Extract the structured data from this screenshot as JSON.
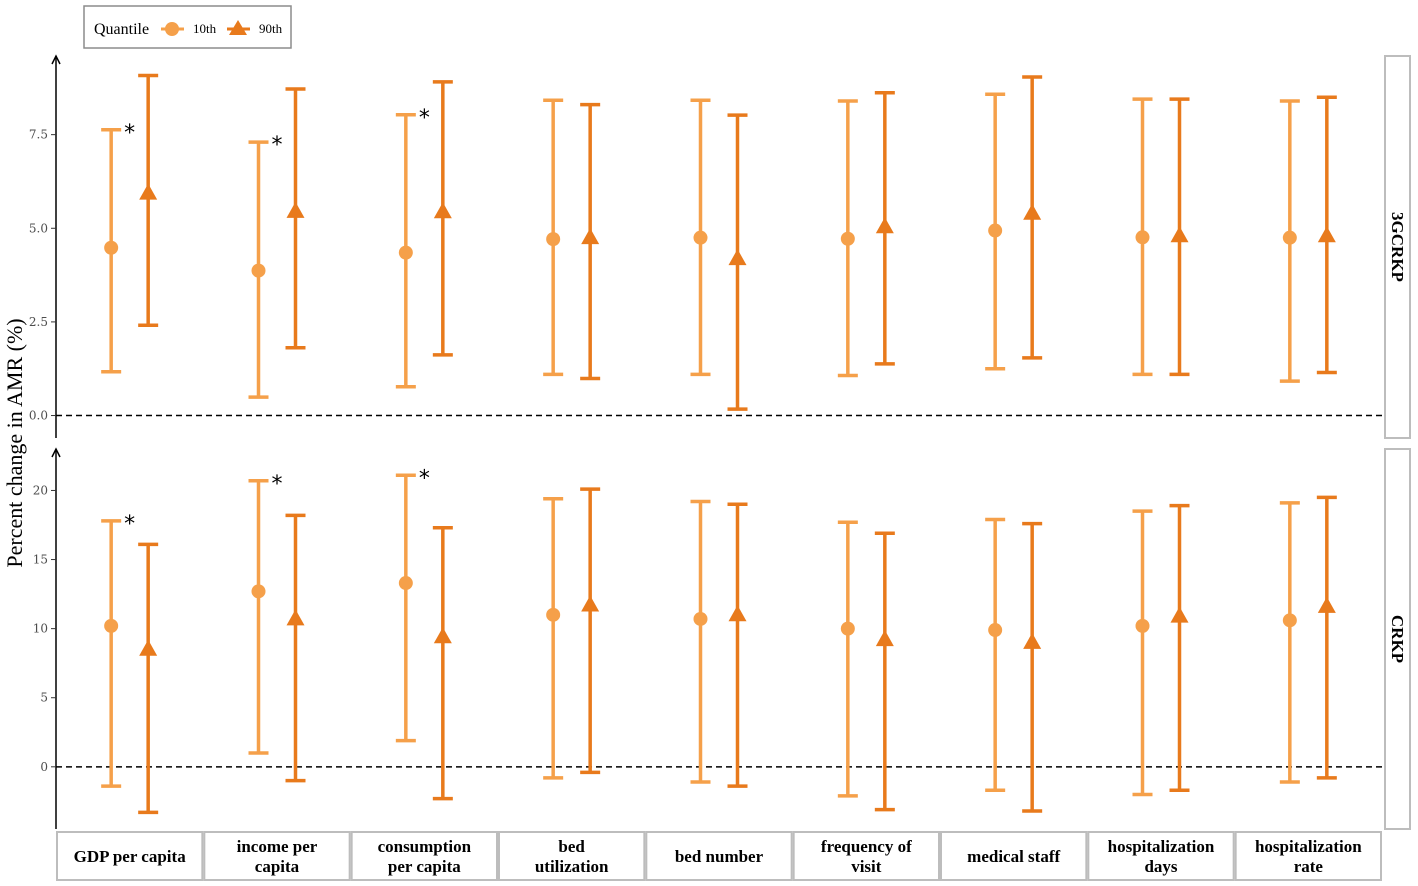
{
  "chart_data": {
    "type": "errorbar",
    "ylabel": "Percent change in AMR (%)",
    "legend": {
      "title": "Quantile",
      "position": "top-left",
      "items": [
        "10th",
        "90th"
      ]
    },
    "colors": {
      "10th": "#F5A04A",
      "90th": "#E87A1C",
      "reference_line": "#000000"
    },
    "categories": [
      {
        "label": "GDP per capita",
        "lines": [
          "GDP per capita"
        ]
      },
      {
        "label": "income per capita",
        "lines": [
          "income per",
          "capita"
        ]
      },
      {
        "label": "consumption per capita",
        "lines": [
          "consumption",
          "per capita"
        ]
      },
      {
        "label": "bed utilization",
        "lines": [
          "bed",
          "utilization"
        ]
      },
      {
        "label": "bed number",
        "lines": [
          "bed number"
        ]
      },
      {
        "label": "frequency of visit",
        "lines": [
          "frequency of",
          "visit"
        ]
      },
      {
        "label": "medical staff",
        "lines": [
          "medical staff"
        ]
      },
      {
        "label": "hospitalization days",
        "lines": [
          "hospitalization",
          "days"
        ]
      },
      {
        "label": "hospitalization rate",
        "lines": [
          "hospitalization",
          "rate"
        ]
      }
    ],
    "panels": [
      {
        "strip": "3GCRKP",
        "ylim": [
          -0.6,
          9.6
        ],
        "yticks": [
          0.0,
          2.5,
          5.0,
          7.5
        ],
        "ytick_labels": [
          "0.0",
          "2.5",
          "5.0",
          "7.5"
        ],
        "significance_marker": "*",
        "series": [
          {
            "name": "10th",
            "estimate": [
              4.48,
              3.87,
              4.35,
              4.71,
              4.75,
              4.72,
              4.94,
              4.76,
              4.75
            ],
            "lower": [
              1.17,
              0.49,
              0.77,
              1.1,
              1.1,
              1.07,
              1.25,
              1.1,
              0.92
            ],
            "upper": [
              7.63,
              7.3,
              8.03,
              8.42,
              8.42,
              8.4,
              8.58,
              8.45,
              8.4
            ]
          },
          {
            "name": "90th",
            "estimate": [
              5.9,
              5.41,
              5.4,
              4.71,
              4.15,
              5.0,
              5.36,
              4.76,
              4.76
            ],
            "lower": [
              2.41,
              1.81,
              1.62,
              0.99,
              0.17,
              1.38,
              1.54,
              1.1,
              1.15
            ],
            "upper": [
              9.08,
              8.72,
              8.91,
              8.3,
              8.02,
              8.62,
              9.04,
              8.45,
              8.5
            ]
          }
        ],
        "significant": [
          true,
          true,
          true,
          false,
          false,
          false,
          false,
          false,
          false
        ]
      },
      {
        "strip": "CRKP",
        "ylim": [
          -4.5,
          23.0
        ],
        "yticks": [
          0,
          5,
          10,
          15,
          20
        ],
        "ytick_labels": [
          "0",
          "5",
          "10",
          "15",
          "20"
        ],
        "significance_marker": "*",
        "series": [
          {
            "name": "10th",
            "estimate": [
              10.2,
              12.7,
              13.3,
              11.0,
              10.7,
              10.0,
              9.9,
              10.2,
              10.6
            ],
            "lower": [
              -1.4,
              1.0,
              1.9,
              -0.8,
              -1.1,
              -2.1,
              -1.7,
              -2.0,
              -1.1
            ],
            "upper": [
              17.8,
              20.7,
              21.1,
              19.4,
              19.2,
              17.7,
              17.9,
              18.5,
              19.1
            ]
          },
          {
            "name": "90th",
            "estimate": [
              8.4,
              10.6,
              9.3,
              11.6,
              10.9,
              9.1,
              8.9,
              10.8,
              11.5
            ],
            "lower": [
              -3.3,
              -1.0,
              -2.3,
              -0.4,
              -1.4,
              -3.1,
              -3.2,
              -1.7,
              -0.8
            ],
            "upper": [
              16.1,
              18.2,
              17.3,
              20.1,
              19.0,
              16.9,
              17.6,
              18.9,
              19.5
            ]
          }
        ],
        "significant": [
          true,
          true,
          true,
          false,
          false,
          false,
          false,
          false,
          false
        ]
      }
    ]
  }
}
